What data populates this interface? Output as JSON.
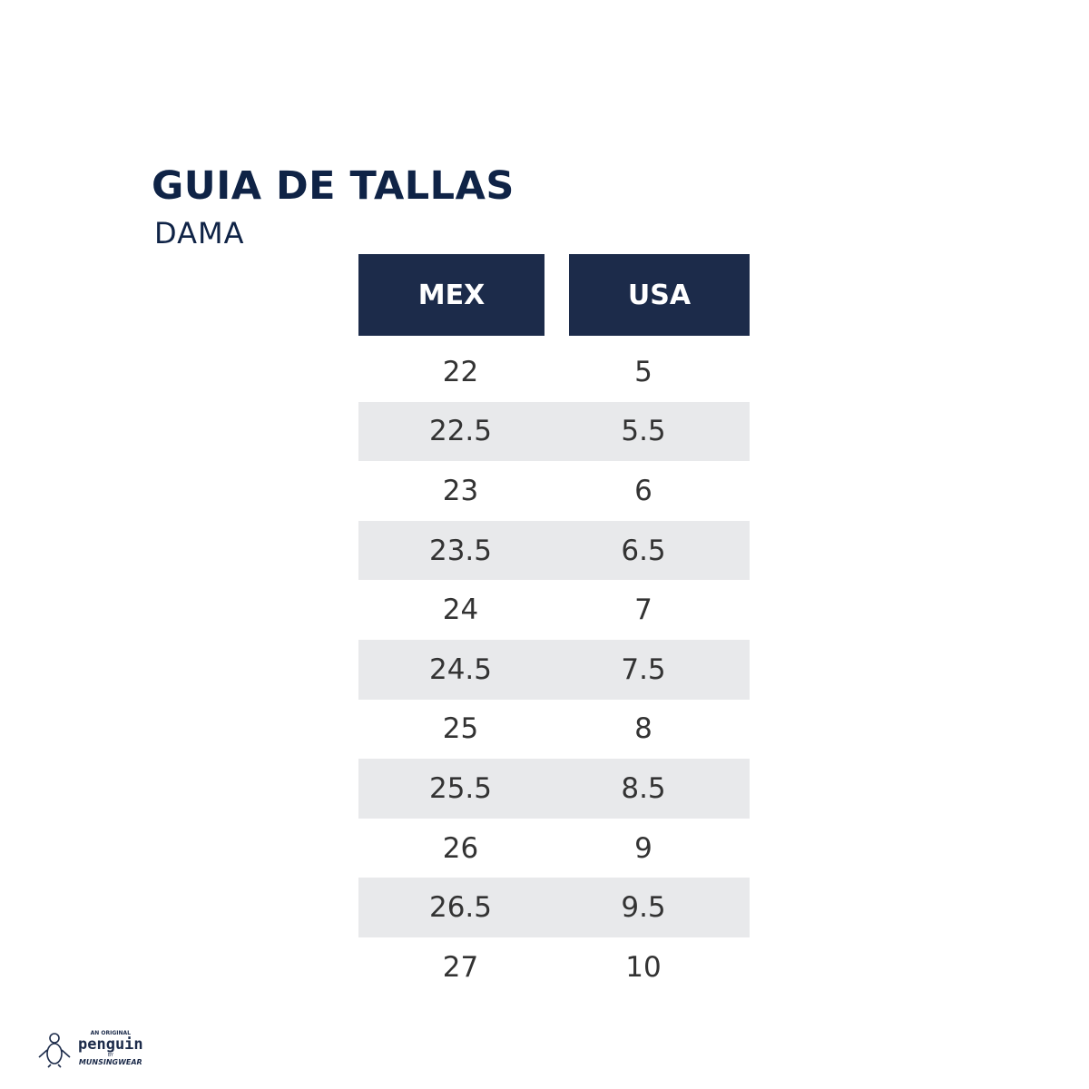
{
  "title": "GUIA DE TALLAS",
  "subtitle": "DAMA",
  "colors": {
    "header_bg": "#1c2b4a",
    "title": "#0f2346",
    "stripe": "#e8e9eb"
  },
  "table": {
    "headers": [
      "MEX",
      "USA"
    ],
    "rows": [
      [
        "22",
        "5"
      ],
      [
        "22.5",
        "5.5"
      ],
      [
        "23",
        "6"
      ],
      [
        "23.5",
        "6.5"
      ],
      [
        "24",
        "7"
      ],
      [
        "24.5",
        "7.5"
      ],
      [
        "25",
        "8"
      ],
      [
        "25.5",
        "8.5"
      ],
      [
        "26",
        "9"
      ],
      [
        "26.5",
        "9.5"
      ],
      [
        "27",
        "10"
      ]
    ]
  },
  "logo": {
    "top": "AN ORIGINAL",
    "brand": "penguin",
    "by": "BY",
    "maker": "MUNSINGWEAR"
  }
}
